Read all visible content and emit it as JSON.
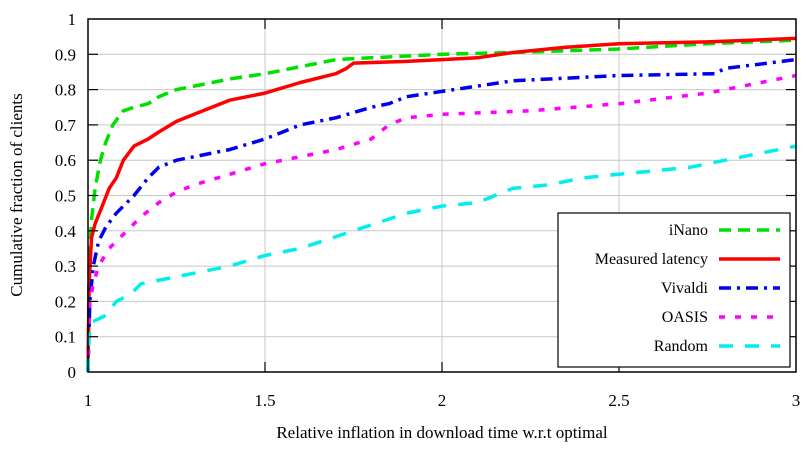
{
  "chart_data": {
    "type": "line",
    "title": "",
    "xlabel": "Relative inflation in download time w.r.t optimal",
    "ylabel": "Cumulative fraction of clients",
    "xlim": [
      1,
      3
    ],
    "ylim": [
      0,
      1
    ],
    "xticks": [
      "1",
      "1.5",
      "2",
      "2.5",
      "3"
    ],
    "xtick_values": [
      1,
      1.5,
      2,
      2.5,
      3
    ],
    "yticks": [
      "0",
      "0.1",
      "0.2",
      "0.3",
      "0.4",
      "0.5",
      "0.6",
      "0.7",
      "0.8",
      "0.9",
      "1"
    ],
    "ytick_values": [
      0,
      0.1,
      0.2,
      0.3,
      0.4,
      0.5,
      0.6,
      0.7,
      0.8,
      0.9,
      1
    ],
    "grid": true,
    "legend_position": "bottom-right",
    "series": [
      {
        "name": "iNano",
        "color": "#00e000",
        "dash": "dashed",
        "x": [
          1.0,
          1.003,
          1.01,
          1.02,
          1.035,
          1.05,
          1.07,
          1.1,
          1.13,
          1.17,
          1.2,
          1.25,
          1.3,
          1.4,
          1.5,
          1.6,
          1.7,
          1.8,
          2.0,
          2.2,
          2.5,
          2.75,
          3.0
        ],
        "y": [
          0.0,
          0.3,
          0.43,
          0.52,
          0.6,
          0.65,
          0.7,
          0.74,
          0.75,
          0.76,
          0.78,
          0.8,
          0.81,
          0.83,
          0.845,
          0.865,
          0.885,
          0.89,
          0.9,
          0.905,
          0.915,
          0.93,
          0.94
        ]
      },
      {
        "name": "Measured latency",
        "color": "#ff0000",
        "dash": "solid",
        "x": [
          1.0,
          1.003,
          1.01,
          1.02,
          1.04,
          1.06,
          1.08,
          1.1,
          1.13,
          1.17,
          1.2,
          1.25,
          1.3,
          1.35,
          1.4,
          1.5,
          1.6,
          1.7,
          1.73,
          1.75,
          1.9,
          2.0,
          2.1,
          2.2,
          2.35,
          2.5,
          2.75,
          3.0
        ],
        "y": [
          0.0,
          0.25,
          0.38,
          0.42,
          0.47,
          0.52,
          0.55,
          0.6,
          0.64,
          0.66,
          0.68,
          0.71,
          0.73,
          0.75,
          0.77,
          0.79,
          0.82,
          0.845,
          0.86,
          0.875,
          0.88,
          0.885,
          0.89,
          0.905,
          0.92,
          0.93,
          0.935,
          0.945
        ]
      },
      {
        "name": "Vivaldi",
        "color": "#0000ee",
        "dash": "dash-dot",
        "x": [
          1.0,
          1.005,
          1.015,
          1.03,
          1.05,
          1.08,
          1.1,
          1.13,
          1.17,
          1.2,
          1.25,
          1.3,
          1.4,
          1.5,
          1.55,
          1.6,
          1.7,
          1.8,
          1.85,
          1.9,
          2.0,
          2.1,
          2.2,
          2.5,
          2.77,
          2.8,
          3.0
        ],
        "y": [
          0.0,
          0.2,
          0.3,
          0.37,
          0.41,
          0.45,
          0.47,
          0.5,
          0.55,
          0.58,
          0.6,
          0.61,
          0.63,
          0.66,
          0.68,
          0.7,
          0.72,
          0.75,
          0.76,
          0.78,
          0.795,
          0.81,
          0.825,
          0.84,
          0.845,
          0.86,
          0.885
        ]
      },
      {
        "name": "OASIS",
        "color": "#ff00ff",
        "dash": "dotted",
        "x": [
          1.0,
          1.005,
          1.015,
          1.03,
          1.06,
          1.1,
          1.15,
          1.2,
          1.25,
          1.3,
          1.4,
          1.5,
          1.6,
          1.7,
          1.8,
          1.85,
          1.9,
          2.0,
          2.25,
          2.5,
          2.75,
          2.85,
          3.0
        ],
        "y": [
          0.0,
          0.2,
          0.25,
          0.3,
          0.35,
          0.39,
          0.44,
          0.48,
          0.51,
          0.53,
          0.56,
          0.59,
          0.61,
          0.63,
          0.66,
          0.7,
          0.72,
          0.73,
          0.74,
          0.76,
          0.79,
          0.81,
          0.84
        ]
      },
      {
        "name": "Random",
        "color": "#00eeee",
        "dash": "long-dash",
        "x": [
          1.0,
          1.003,
          1.008,
          1.05,
          1.08,
          1.12,
          1.15,
          1.25,
          1.3,
          1.4,
          1.5,
          1.6,
          1.75,
          1.9,
          2.0,
          2.1,
          2.2,
          2.3,
          2.4,
          2.5,
          2.7,
          2.85,
          3.0
        ],
        "y": [
          0.0,
          0.1,
          0.14,
          0.16,
          0.2,
          0.22,
          0.25,
          0.27,
          0.28,
          0.3,
          0.33,
          0.35,
          0.4,
          0.45,
          0.47,
          0.48,
          0.52,
          0.53,
          0.55,
          0.56,
          0.58,
          0.61,
          0.64
        ]
      }
    ]
  }
}
